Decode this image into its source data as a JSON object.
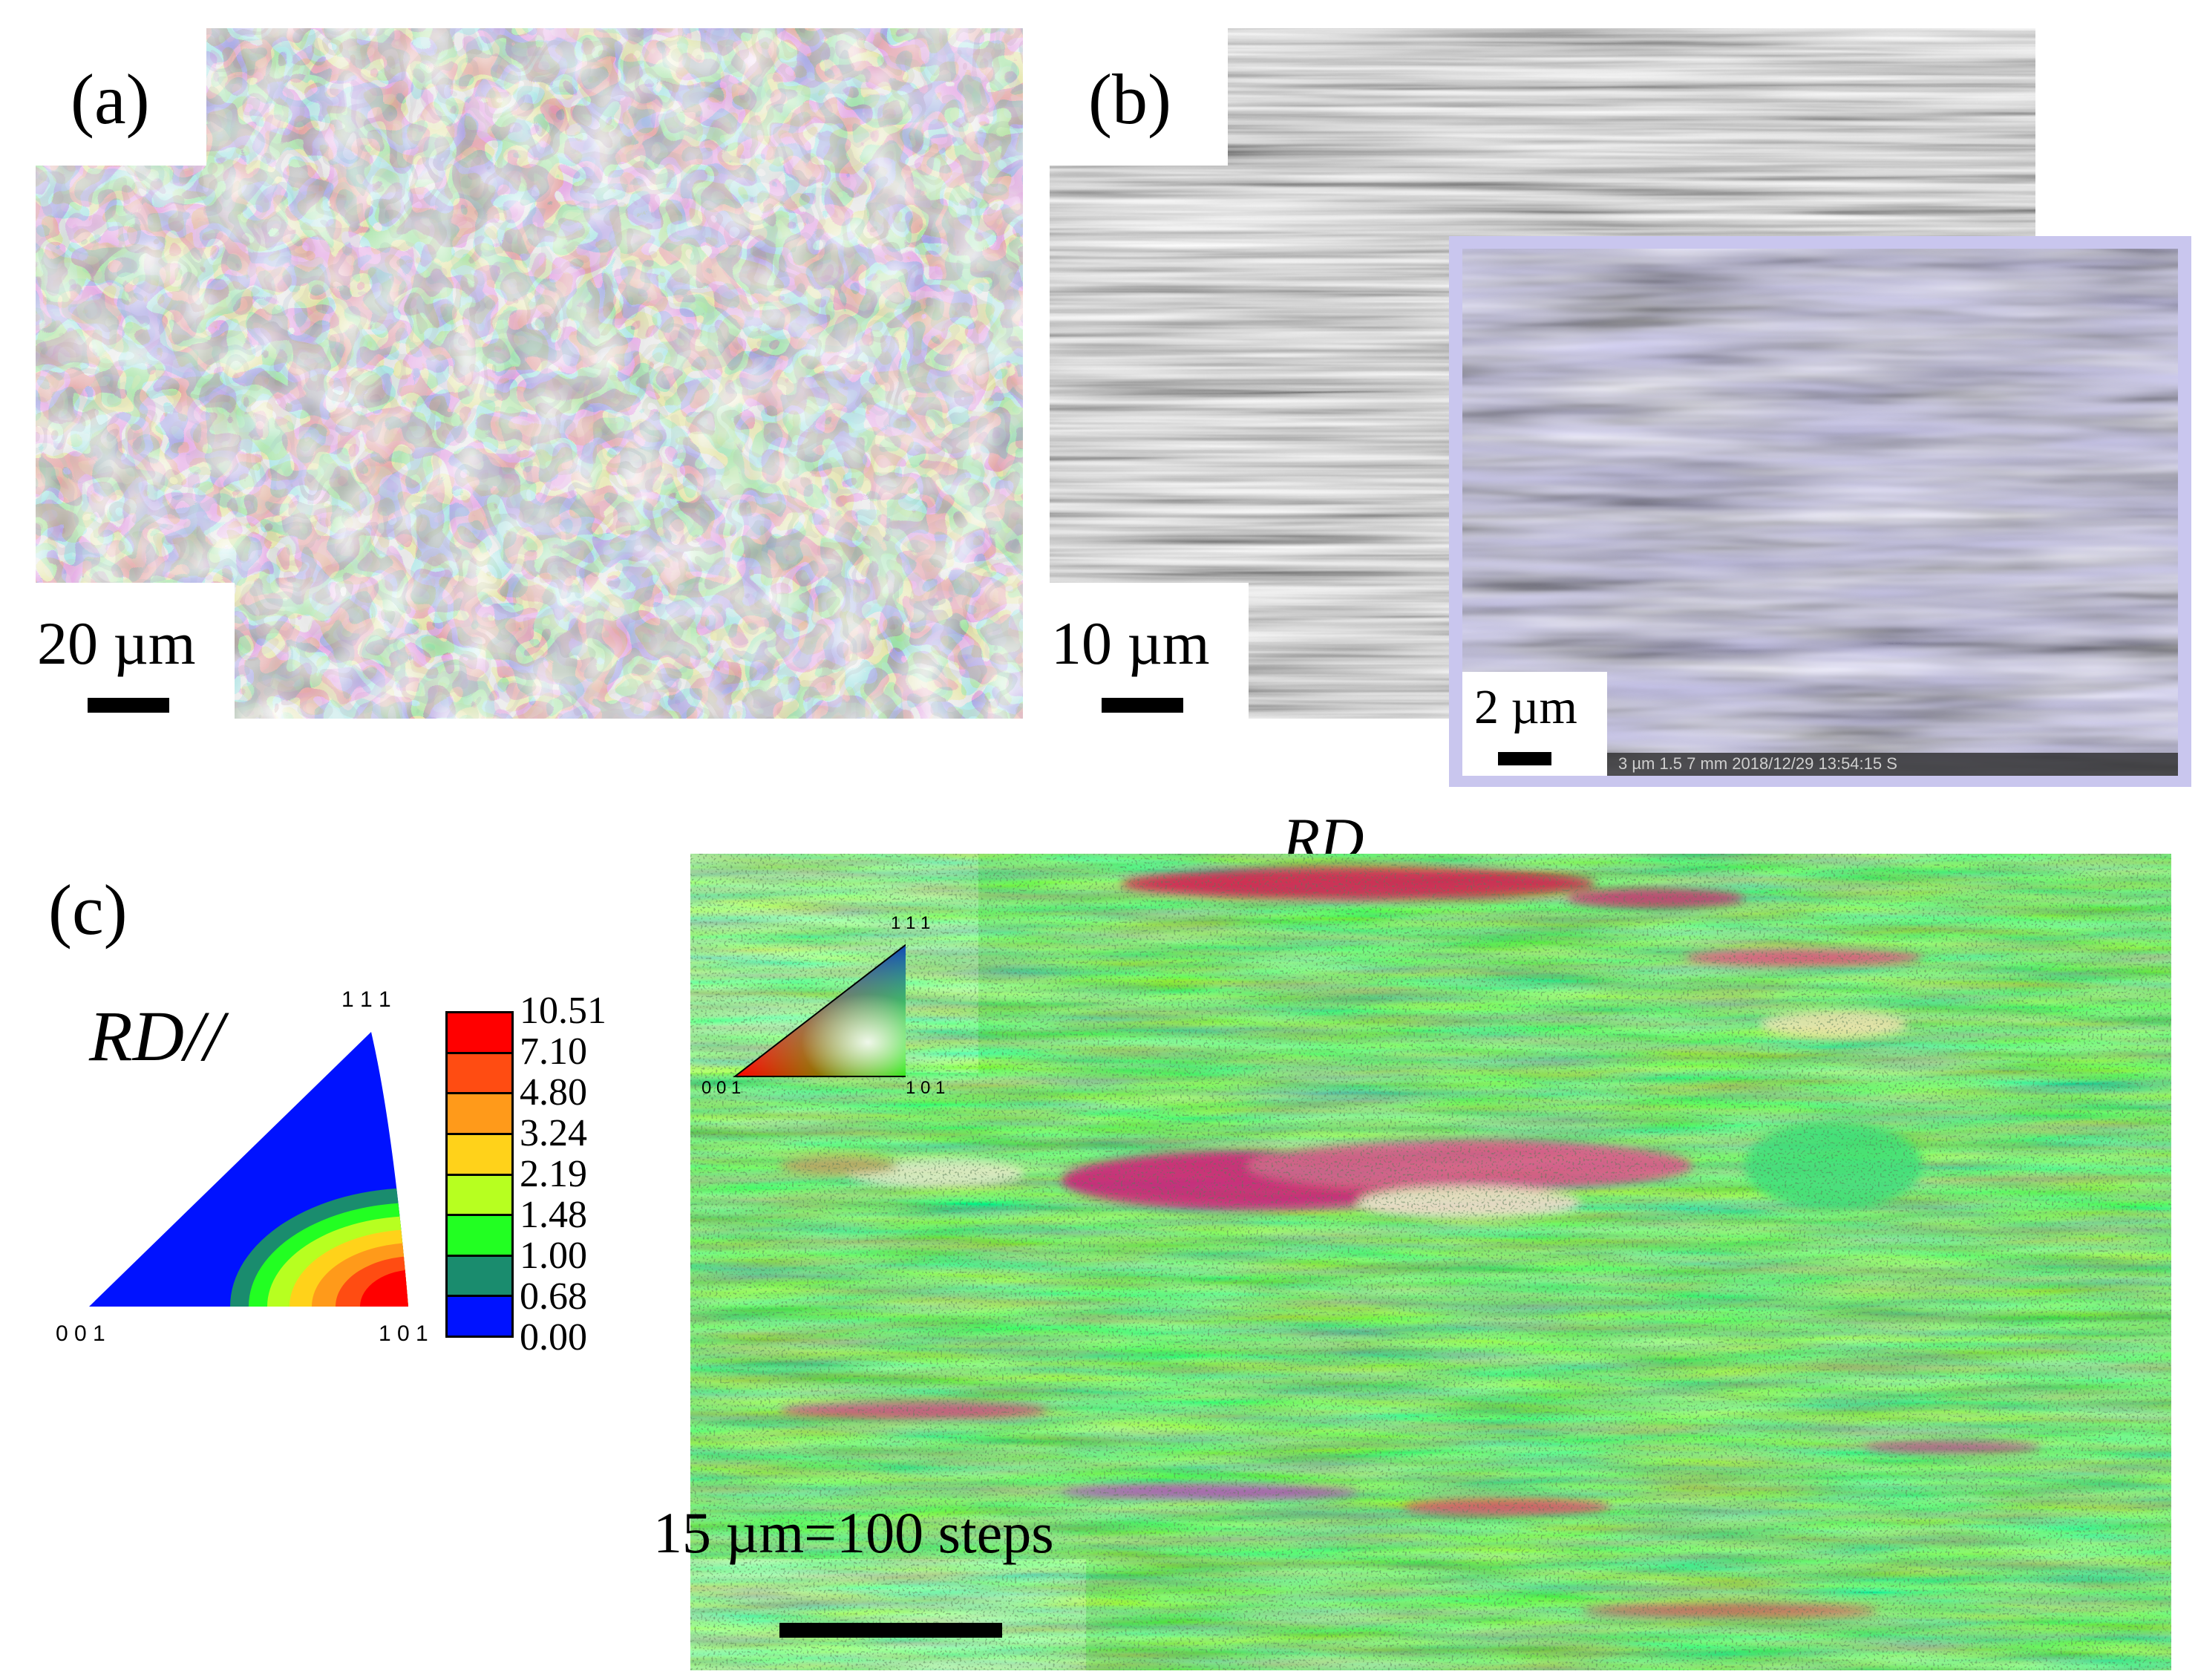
{
  "panel_a": {
    "label": "(a)",
    "scale_text": "20 µm"
  },
  "panel_b": {
    "label": "(b)",
    "scale_text": "10 µm",
    "inset_scale_text": "2 µm",
    "inset_footer": "3 µm  1.5  7 mm  2018/12/29  13:54:15  S"
  },
  "panel_c": {
    "label": "(c)",
    "rd_label": "RD",
    "ipf_title": "RD//",
    "ipf_corners": {
      "top": "1 1 1",
      "left": "0 0 1",
      "right": "1 0 1"
    },
    "legend": {
      "values": [
        "10.51",
        "7.10",
        "4.80",
        "3.24",
        "2.19",
        "1.48",
        "1.00",
        "0.68",
        "0.00"
      ],
      "colors": [
        "#ff0000",
        "#ff4c12",
        "#ff9a1a",
        "#ffd21a",
        "#b7ff20",
        "#22ff22",
        "#1a8c6e",
        "#0012ff"
      ]
    },
    "key_corners": {
      "top": "1 1 1",
      "left": "0 0 1",
      "right": "1 0 1"
    },
    "scale_text": "15 µm=100 steps"
  }
}
